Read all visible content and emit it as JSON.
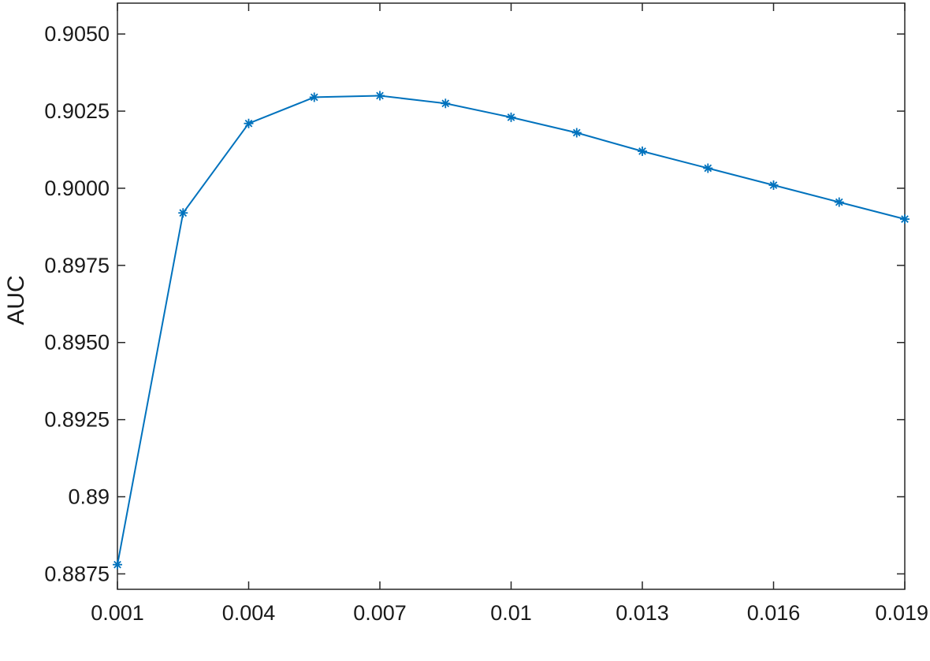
{
  "chart_data": {
    "type": "line",
    "title": "",
    "xlabel": "",
    "ylabel": "AUC",
    "xlim": [
      0.001,
      0.019
    ],
    "ylim": [
      0.887,
      0.906
    ],
    "grid": false,
    "x_ticks": [
      0.001,
      0.004,
      0.007,
      0.01,
      0.013,
      0.016,
      0.019
    ],
    "x_tick_labels": [
      "0.001",
      "0.004",
      "0.007",
      "0.01",
      "0.013",
      "0.016",
      "0.019"
    ],
    "y_ticks": [
      0.8875,
      0.89,
      0.8925,
      0.895,
      0.8975,
      0.9,
      0.9025,
      0.905
    ],
    "y_tick_labels": [
      "0.8875",
      "0.89",
      "0.8925",
      "0.8950",
      "0.8975",
      "0.9000",
      "0.9025",
      "0.9050"
    ],
    "series": [
      {
        "color": "#0072BD",
        "marker": "asterisk",
        "x": [
          0.001,
          0.0025,
          0.004,
          0.0055,
          0.007,
          0.0085,
          0.01,
          0.0115,
          0.013,
          0.0145,
          0.016,
          0.0175,
          0.019
        ],
        "y": [
          0.8878,
          0.8992,
          0.9021,
          0.90295,
          0.903,
          0.90275,
          0.9023,
          0.9018,
          0.9012,
          0.90065,
          0.9001,
          0.89955,
          0.899
        ]
      }
    ]
  }
}
